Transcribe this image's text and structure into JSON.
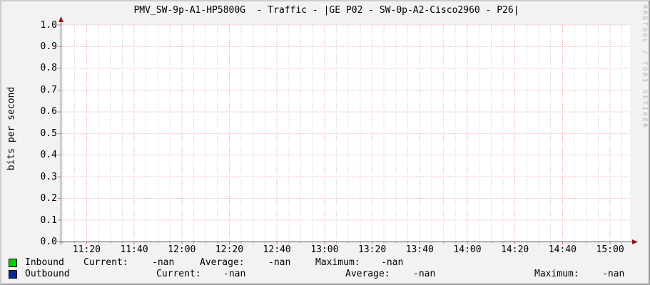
{
  "title": "PMV_SW-9p-A1-HP5800G  - Traffic - |GE P02 - SW-0p-A2-Cisco2960 - P26|",
  "watermark": "RRDTOOL / TOBI OETIKER",
  "legend": {
    "current_label": "Current:",
    "average_label": "Average:",
    "maximum_label": "Maximum:"
  },
  "chart_data": {
    "type": "line",
    "title": "PMV_SW-9p-A1-HP5800G  - Traffic - |GE P02 - SW-0p-A2-Cisco2960 - P26|",
    "xlabel": "",
    "ylabel": "bits per second",
    "ylim": [
      0.0,
      1.0
    ],
    "grid_on": true,
    "legend_position": "bottom",
    "y_ticks": [
      "1.0",
      "0.9",
      "0.8",
      "0.7",
      "0.6",
      "0.5",
      "0.4",
      "0.3",
      "0.2",
      "0.1",
      "0.0"
    ],
    "x_ticks": [
      "11:20",
      "11:40",
      "12:00",
      "12:20",
      "12:40",
      "13:00",
      "13:20",
      "13:40",
      "14:00",
      "14:20",
      "14:40",
      "15:00"
    ],
    "series": [
      {
        "name": "Inbound",
        "color": "#00CF00",
        "values": [],
        "current": "-nan",
        "average": "-nan",
        "maximum": "-nan"
      },
      {
        "name": "Outbound",
        "color": "#002A97",
        "values": [],
        "current": "-nan",
        "average": "-nan",
        "maximum": "-nan"
      }
    ],
    "colors": {
      "canvas": "#ffffff",
      "background": "#f2f2f2",
      "major_grid": "#f09b9b",
      "minor_grid": "#cccccc",
      "axis": "#555555",
      "arrow": "#8b1a1a"
    }
  }
}
